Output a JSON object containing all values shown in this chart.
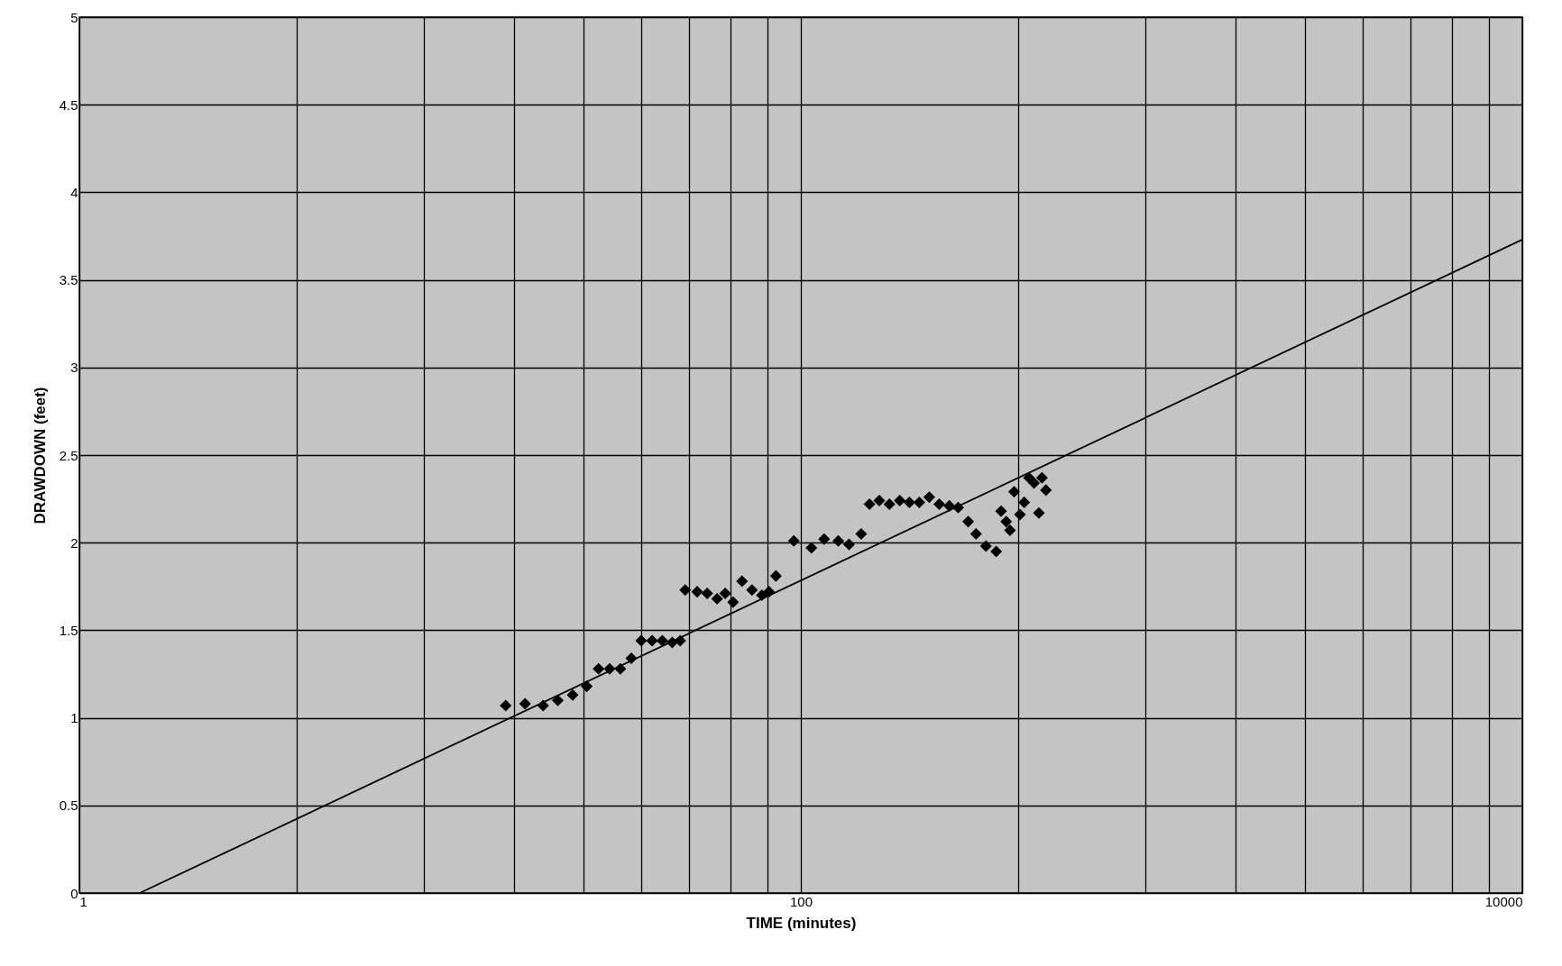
{
  "chart_data": {
    "type": "scatter",
    "xlabel": "TIME (minutes)",
    "ylabel": "DRAWDOWN (feet)",
    "log": "x",
    "grid": true,
    "xlim": [
      1,
      10000
    ],
    "ylim": [
      0,
      5
    ],
    "xticks": [
      1,
      {
        "value": 4,
        "label": null
      },
      {
        "value": 9,
        "label": null
      },
      {
        "value": 16,
        "label": null
      },
      {
        "value": 25,
        "label": null
      },
      {
        "value": 36,
        "label": null
      },
      {
        "value": 49,
        "label": null
      },
      {
        "value": 64,
        "label": null
      },
      {
        "value": 81,
        "label": null
      },
      100,
      {
        "value": 400,
        "label": null
      },
      {
        "value": 900,
        "label": null
      },
      {
        "value": 1600,
        "label": null
      },
      {
        "value": 2500,
        "label": null
      },
      {
        "value": 3600,
        "label": null
      },
      {
        "value": 4900,
        "label": null
      },
      {
        "value": 6400,
        "label": null
      },
      {
        "value": 8100,
        "label": null
      },
      10000
    ],
    "yticks": [
      0,
      0.5,
      1,
      1.5,
      2,
      2.5,
      3,
      3.5,
      4,
      4.5,
      5
    ],
    "series": [
      {
        "marker": "diamond",
        "color": "#000000",
        "x": [
          15.2,
          17.2,
          19.3,
          21.2,
          23.3,
          25.5,
          27.5,
          29.5,
          31.6,
          33.9,
          36.1,
          38.7,
          41.3,
          44,
          46.3,
          47.8,
          51.6,
          55,
          58.6,
          61.7,
          64.9,
          68.7,
          73.2,
          78,
          81.6,
          85.3,
          95.6,
          107,
          116,
          127,
          136,
          147,
          155,
          165,
          176,
          188,
          200,
          213,
          227,
          242,
          258,
          273,
          291,
          306,
          326,
          348,
          359,
          371,
          380,
          390,
          405,
          416,
          429,
          443,
          457,
          466,
          478
        ],
        "values": [
          1.07,
          1.08,
          1.07,
          1.1,
          1.13,
          1.18,
          1.28,
          1.28,
          1.28,
          1.34,
          1.44,
          1.44,
          1.44,
          1.43,
          1.44,
          1.73,
          1.72,
          1.71,
          1.68,
          1.71,
          1.66,
          1.78,
          1.73,
          1.7,
          1.72,
          1.81,
          2.01,
          1.97,
          2.02,
          2.01,
          1.99,
          2.05,
          2.22,
          2.24,
          2.22,
          2.24,
          2.23,
          2.23,
          2.26,
          2.22,
          2.21,
          2.2,
          2.12,
          2.05,
          1.98,
          1.95,
          2.18,
          2.12,
          2.07,
          2.29,
          2.16,
          2.23,
          2.37,
          2.34,
          2.17,
          2.37,
          2.3
        ]
      },
      {
        "type": "line",
        "marker": "none",
        "line_style": "solid",
        "color": "#000000",
        "x": [
          1.47,
          10000
        ],
        "values": [
          0,
          3.73
        ]
      }
    ]
  }
}
